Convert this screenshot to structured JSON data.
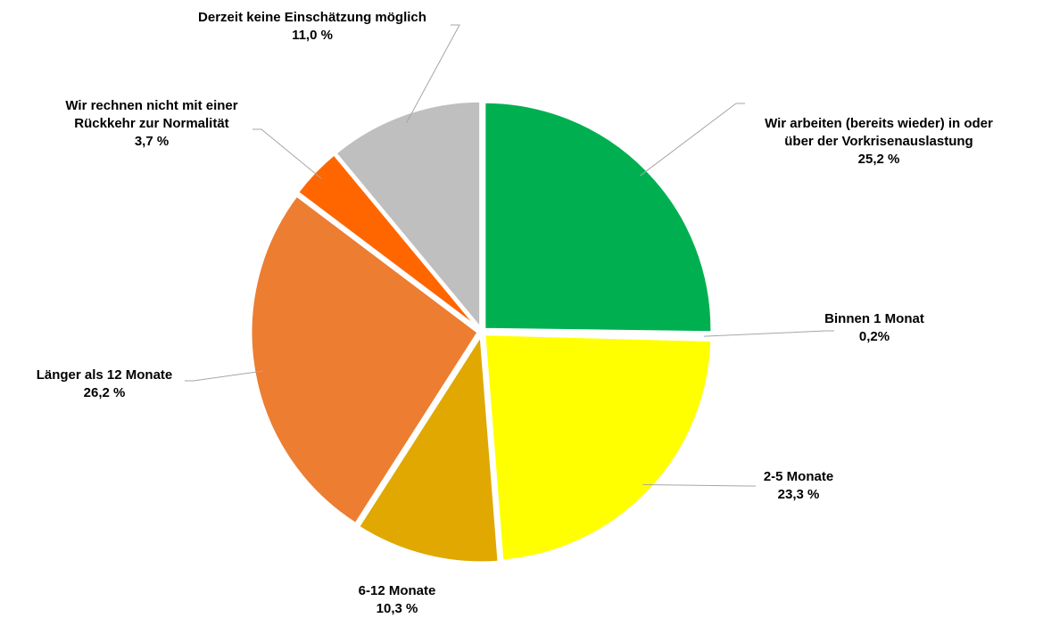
{
  "chart_data": {
    "type": "pie",
    "slices": [
      {
        "label_lines": [
          "Wir arbeiten (bereits wieder) in oder",
          "über der Vorkrisenauslastung"
        ],
        "value": 25.2,
        "value_label": "25,2 %",
        "color": "#00b050"
      },
      {
        "label_lines": [
          "Binnen 1 Monat"
        ],
        "value": 0.2,
        "value_label": "0,2%",
        "color": "#92d050"
      },
      {
        "label_lines": [
          "2-5 Monate"
        ],
        "value": 23.3,
        "value_label": "23,3 %",
        "color": "#ffff00"
      },
      {
        "label_lines": [
          "6-12 Monate"
        ],
        "value": 10.3,
        "value_label": "10,3 %",
        "color": "#e0a800"
      },
      {
        "label_lines": [
          "Länger als 12 Monate"
        ],
        "value": 26.2,
        "value_label": "26,2 %",
        "color": "#ed7d31"
      },
      {
        "label_lines": [
          "Wir rechnen nicht mit einer",
          "Rückkehr zur Normalität"
        ],
        "value": 3.7,
        "value_label": "3,7 %",
        "color": "#ff6600"
      },
      {
        "label_lines": [
          "Derzeit keine Einschätzung möglich"
        ],
        "value": 11.0,
        "value_label": "11,0 %",
        "color": "#bfbfbf"
      }
    ]
  }
}
